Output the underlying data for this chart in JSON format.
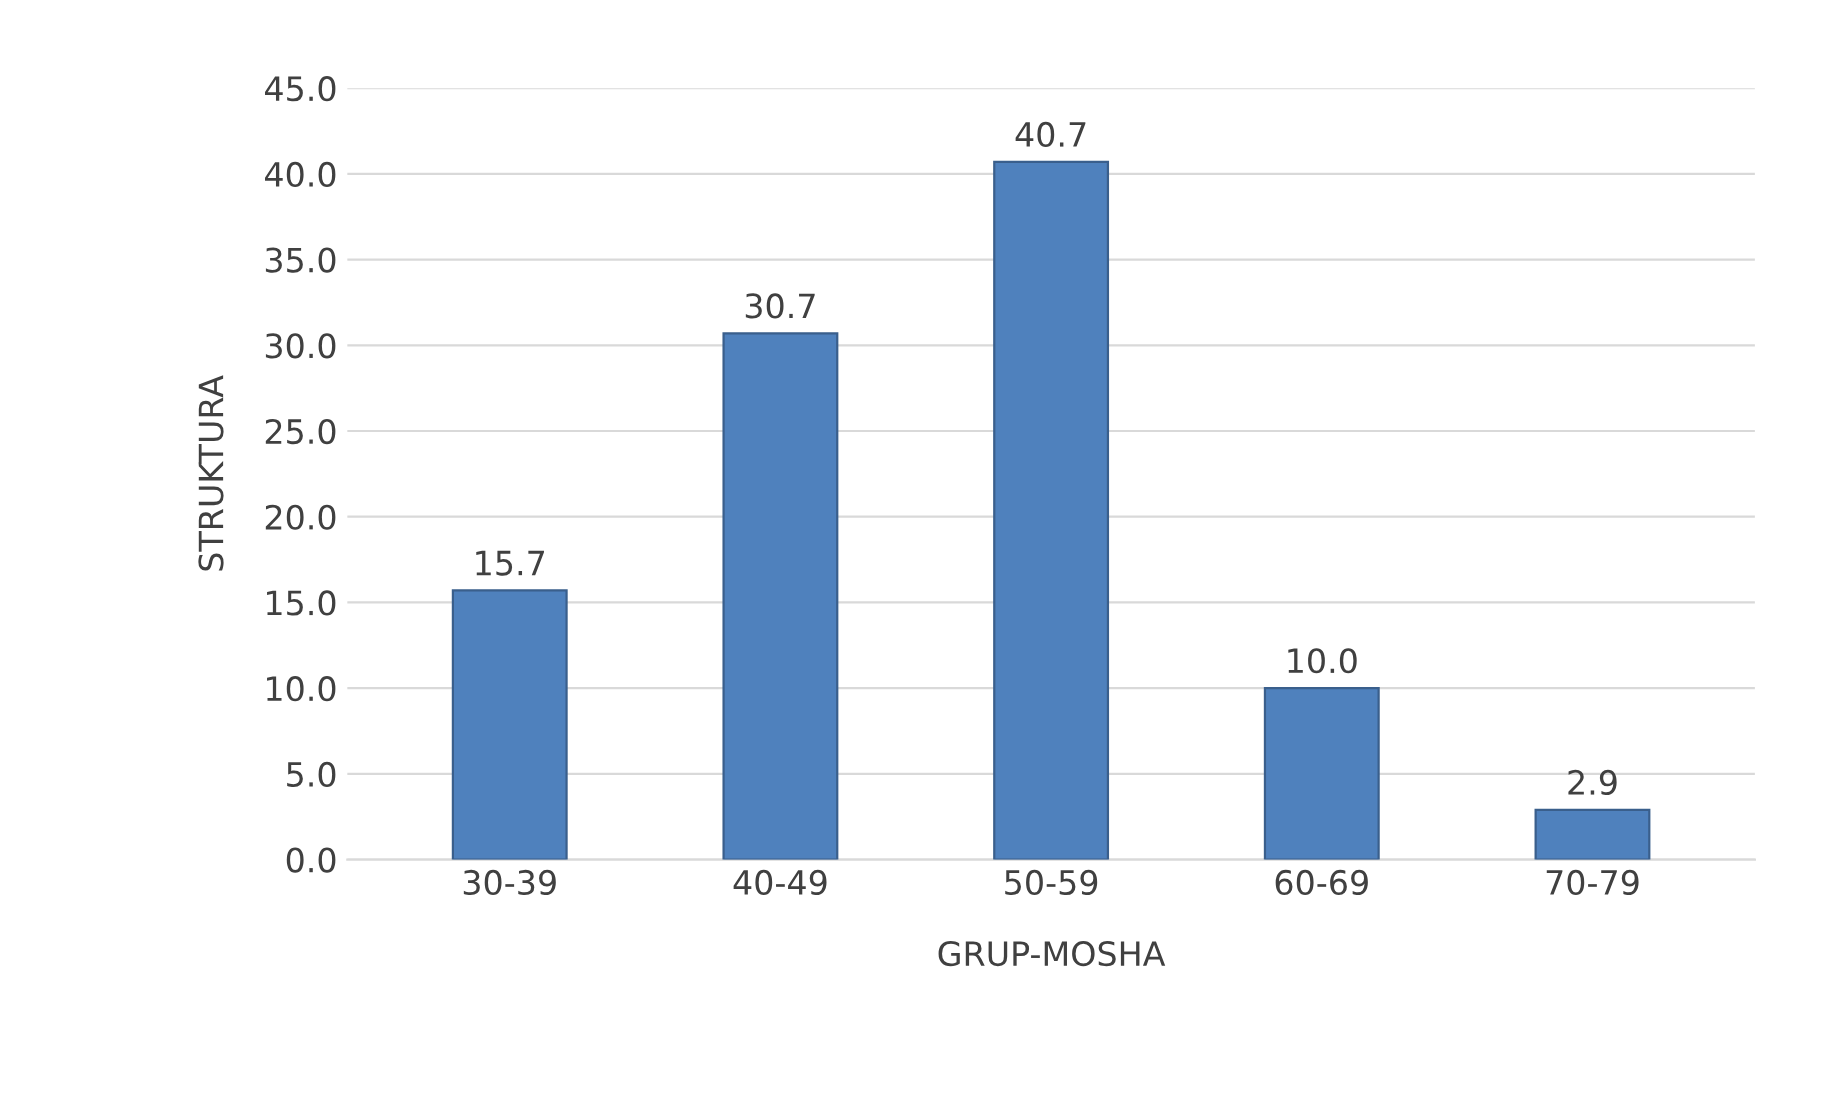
{
  "chart_data": {
    "type": "bar",
    "xlabel": "GRUP-MOSHA",
    "ylabel": "STRUKTURA",
    "categories": [
      "30-39",
      "40-49",
      "50-59",
      "60-69",
      "70-79"
    ],
    "values": [
      15.7,
      30.7,
      40.7,
      10.0,
      2.9
    ],
    "value_labels": [
      "15.7",
      "30.7",
      "40.7",
      "10.0",
      "2.9"
    ],
    "color": "#4f81bd",
    "ylim": [
      0,
      45
    ],
    "yticks": [
      {
        "value": 0,
        "label": "0.0"
      },
      {
        "value": 5,
        "label": "5.0"
      },
      {
        "value": 10,
        "label": "10.0"
      },
      {
        "value": 15,
        "label": "15.0"
      },
      {
        "value": 20,
        "label": "20.0"
      },
      {
        "value": 25,
        "label": "25.0"
      },
      {
        "value": 30,
        "label": "30.0"
      },
      {
        "value": 35,
        "label": "35.0"
      },
      {
        "value": 40,
        "label": "40.0"
      },
      {
        "value": 45,
        "label": "45.0"
      }
    ],
    "grid": "y",
    "legend": false
  }
}
